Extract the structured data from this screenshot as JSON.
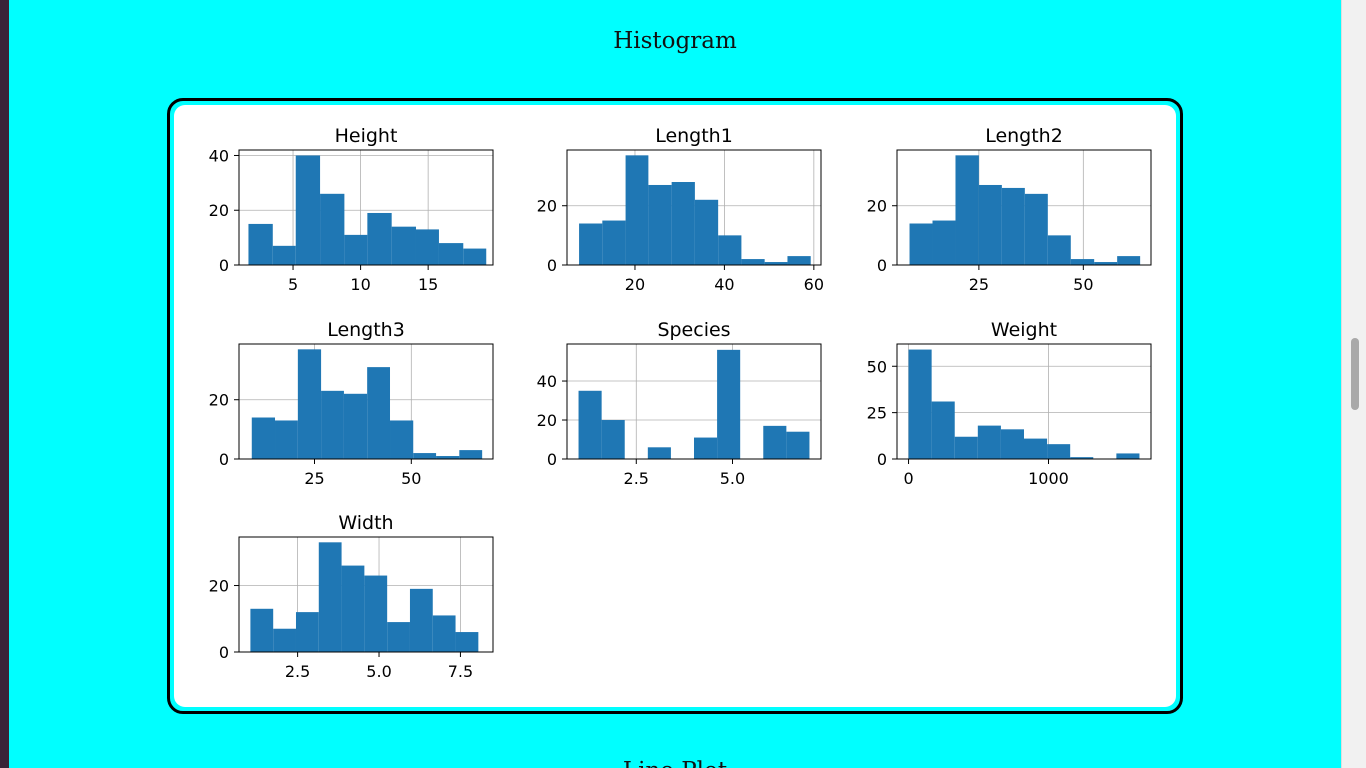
{
  "page": {
    "histogram_title": "Histogram",
    "next_section_title": "Line Plot"
  },
  "colors": {
    "page_background": "#00ffff",
    "bar": "#1f77b4"
  },
  "chart_data": [
    {
      "type": "bar",
      "title": "Height",
      "xlabel": "",
      "ylabel": "",
      "xlim": [
        1.0,
        19.8
      ],
      "ylim": [
        0,
        42
      ],
      "bin_edges": [
        1.7,
        3.5,
        5.2,
        7.0,
        8.8,
        10.5,
        12.3,
        14.1,
        15.8,
        17.6,
        19.3
      ],
      "values": [
        15,
        7,
        40,
        26,
        11,
        19,
        14,
        13,
        8,
        6
      ],
      "xticks": [
        5,
        10,
        15
      ],
      "xtick_labels": [
        "5",
        "10",
        "15"
      ],
      "yticks": [
        0,
        20,
        40
      ],
      "ytick_labels": [
        "0",
        "20",
        "40"
      ]
    },
    {
      "type": "bar",
      "title": "Length1",
      "xlabel": "",
      "ylabel": "",
      "xlim": [
        4.8,
        61.6
      ],
      "ylim": [
        0,
        38.8
      ],
      "bin_edges": [
        7.5,
        12.7,
        17.9,
        23.0,
        28.2,
        33.4,
        38.6,
        43.8,
        49.0,
        54.1,
        59.3
      ],
      "values": [
        14,
        15,
        37,
        27,
        28,
        22,
        10,
        2,
        1,
        3
      ],
      "xticks": [
        20,
        40,
        60
      ],
      "xtick_labels": [
        "20",
        "40",
        "60"
      ],
      "yticks": [
        0,
        20
      ],
      "ytick_labels": [
        "0",
        "20"
      ]
    },
    {
      "type": "bar",
      "title": "Length2",
      "xlabel": "",
      "ylabel": "",
      "xlim": [
        5.4,
        66.2
      ],
      "ylim": [
        0,
        38.8
      ],
      "bin_edges": [
        8.4,
        13.9,
        19.4,
        25.0,
        30.5,
        36.0,
        41.5,
        47.0,
        52.6,
        58.1,
        63.6
      ],
      "values": [
        14,
        15,
        37,
        27,
        26,
        24,
        10,
        2,
        1,
        3
      ],
      "xticks": [
        25,
        50
      ],
      "xtick_labels": [
        "25",
        "50"
      ],
      "yticks": [
        0,
        20
      ],
      "ytick_labels": [
        "0",
        "20"
      ]
    },
    {
      "type": "bar",
      "title": "Length3",
      "xlabel": "",
      "ylabel": "",
      "xlim": [
        5.5,
        71.1
      ],
      "ylim": [
        0,
        38.8
      ],
      "bin_edges": [
        8.8,
        14.8,
        20.7,
        26.7,
        32.6,
        38.6,
        44.5,
        50.5,
        56.4,
        62.4,
        68.3
      ],
      "values": [
        14,
        13,
        37,
        23,
        22,
        31,
        13,
        2,
        1,
        3
      ],
      "xticks": [
        25,
        50
      ],
      "xtick_labels": [
        "25",
        "50"
      ],
      "yticks": [
        0,
        20
      ],
      "ytick_labels": [
        "0",
        "20"
      ]
    },
    {
      "type": "bar",
      "title": "Species",
      "xlabel": "",
      "ylabel": "",
      "xlim": [
        0.7,
        7.3
      ],
      "ylim": [
        0,
        59
      ],
      "bin_edges": [
        1.0,
        1.6,
        2.2,
        2.8,
        3.4,
        4.0,
        4.6,
        5.2,
        5.8,
        6.4,
        7.0
      ],
      "values": [
        35,
        20,
        0,
        6,
        0,
        11,
        56,
        0,
        17,
        14
      ],
      "xticks": [
        2.5,
        5.0
      ],
      "xtick_labels": [
        "2.5",
        "5.0"
      ],
      "yticks": [
        0,
        20,
        40
      ],
      "ytick_labels": [
        "0",
        "20",
        "40"
      ]
    },
    {
      "type": "bar",
      "title": "Weight",
      "xlabel": "",
      "ylabel": "",
      "xlim": [
        -82.5,
        1732.5
      ],
      "ylim": [
        0,
        62
      ],
      "bin_edges": [
        0,
        165,
        330,
        495,
        660,
        825,
        990,
        1155,
        1320,
        1485,
        1650
      ],
      "values": [
        59,
        31,
        12,
        18,
        16,
        11,
        8,
        1,
        0,
        3
      ],
      "xticks": [
        0,
        1000
      ],
      "xtick_labels": [
        "0",
        "1000"
      ],
      "yticks": [
        0,
        25,
        50
      ],
      "ytick_labels": [
        "0",
        "25",
        "50"
      ]
    },
    {
      "type": "bar",
      "title": "Width",
      "xlabel": "",
      "ylabel": "",
      "xlim": [
        0.7,
        8.5
      ],
      "ylim": [
        0,
        34.6
      ],
      "bin_edges": [
        1.05,
        1.75,
        2.45,
        3.15,
        3.85,
        4.55,
        5.25,
        5.95,
        6.65,
        7.35,
        8.05
      ],
      "values": [
        13,
        7,
        12,
        33,
        26,
        23,
        9,
        19,
        11,
        6
      ],
      "xticks": [
        2.5,
        5.0,
        7.5
      ],
      "xtick_labels": [
        "2.5",
        "5.0",
        "7.5"
      ],
      "yticks": [
        0,
        20
      ],
      "ytick_labels": [
        "0",
        "20"
      ]
    }
  ]
}
